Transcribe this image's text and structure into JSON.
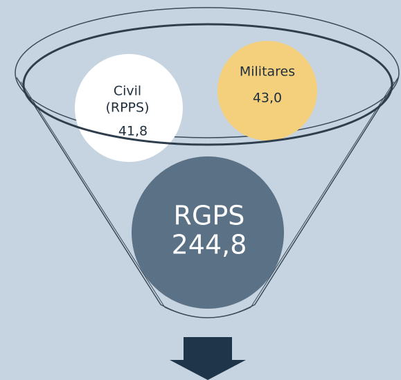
{
  "nodes": [
    {
      "label": [
        "Civil",
        "(RPPS)"
      ],
      "value": "41,8"
    },
    {
      "label": [
        "Militares"
      ],
      "value": "43,0"
    },
    {
      "label": [
        "RGPS"
      ],
      "value": "244,8"
    }
  ]
}
